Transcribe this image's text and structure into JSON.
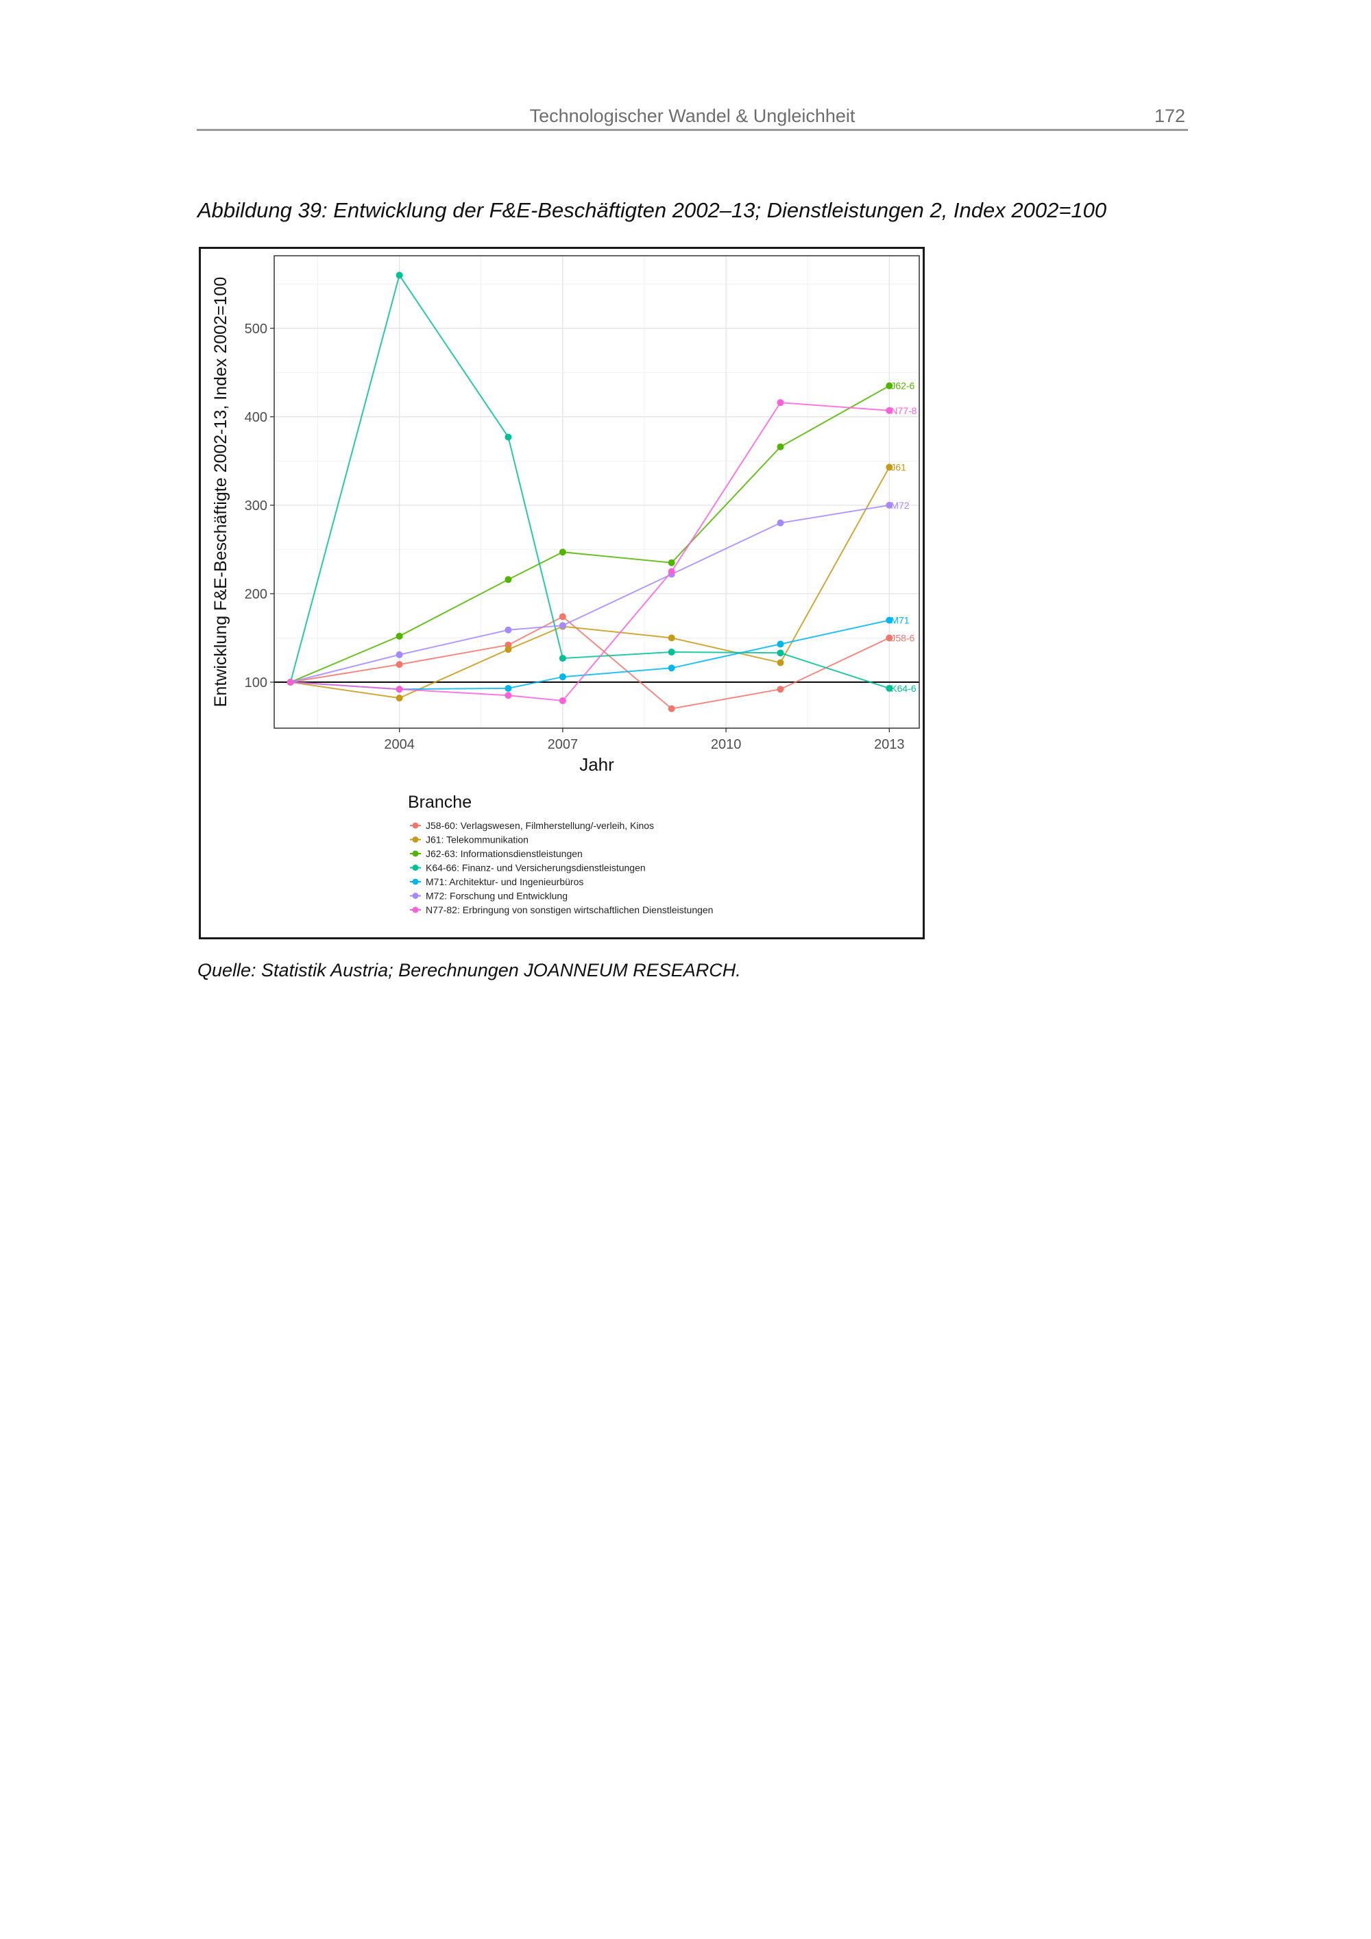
{
  "header": {
    "title": "Technologischer Wandel & Ungleichheit",
    "page_number": "172"
  },
  "figure": {
    "caption": "Abbildung 39: Entwicklung der F&E-Beschäftigten 2002–13; Dienstleistungen 2, Index 2002=100",
    "source": "Quelle: Statistik Austria; Berechnungen JOANNEUM RESEARCH."
  },
  "chart_data": {
    "type": "line",
    "title": "",
    "xlabel": "Jahr",
    "ylabel": "Entwicklung F&E-Beschäftigte 2002-13, Index 2002=100",
    "xlim": [
      2001.7,
      2013.55
    ],
    "ylim": [
      48,
      582
    ],
    "x_ticks": [
      2004,
      2007,
      2010,
      2013
    ],
    "y_ticks": [
      100,
      200,
      300,
      400,
      500
    ],
    "grid": true,
    "reference_line": 100,
    "legend_title": "Branche",
    "legend_position": "bottom",
    "series": [
      {
        "name": "J58-60: Verlagswesen, Filmherstellung/-verleih, Kinos",
        "end_label": "J58-6",
        "color": "#f0766e",
        "points": [
          [
            2002,
            100
          ],
          [
            2004,
            120
          ],
          [
            2006,
            142
          ],
          [
            2007,
            174
          ],
          [
            2009,
            70
          ],
          [
            2011,
            92
          ],
          [
            2013,
            150
          ]
        ]
      },
      {
        "name": "J61: Telekommunikation",
        "end_label": "J61",
        "color": "#c49a18",
        "points": [
          [
            2002,
            100
          ],
          [
            2004,
            82
          ],
          [
            2006,
            137
          ],
          [
            2007,
            163
          ],
          [
            2009,
            150
          ],
          [
            2011,
            122
          ],
          [
            2013,
            343
          ]
        ]
      },
      {
        "name": "J62-63: Informationsdienstleistungen",
        "end_label": "J62-6",
        "color": "#53b400",
        "points": [
          [
            2002,
            100
          ],
          [
            2004,
            152
          ],
          [
            2006,
            216
          ],
          [
            2007,
            247
          ],
          [
            2009,
            235
          ],
          [
            2011,
            366
          ],
          [
            2013,
            435
          ]
        ]
      },
      {
        "name": "K64-66: Finanz- und Versicherungsdienstleistungen",
        "end_label": "K64-6",
        "color": "#00c094",
        "points": [
          [
            2002,
            100
          ],
          [
            2004,
            560
          ],
          [
            2006,
            377
          ],
          [
            2007,
            127
          ],
          [
            2009,
            134
          ],
          [
            2011,
            133
          ],
          [
            2013,
            93
          ]
        ]
      },
      {
        "name": "M71: Architektur- und Ingenieurbüros",
        "end_label": "M71",
        "color": "#00b6eb",
        "points": [
          [
            2002,
            100
          ],
          [
            2004,
            92
          ],
          [
            2006,
            93
          ],
          [
            2007,
            106
          ],
          [
            2009,
            116
          ],
          [
            2011,
            143
          ],
          [
            2013,
            170
          ]
        ]
      },
      {
        "name": "M72: Forschung und Entwicklung",
        "end_label": "M72",
        "color": "#a58aff",
        "points": [
          [
            2002,
            100
          ],
          [
            2004,
            131
          ],
          [
            2006,
            159
          ],
          [
            2007,
            164
          ],
          [
            2009,
            222
          ],
          [
            2011,
            280
          ],
          [
            2013,
            300
          ]
        ]
      },
      {
        "name": "N77-82: Erbringung von sonstigen wirtschaftlichen Dienstleistungen",
        "end_label": "N77-8",
        "color": "#fb61d7",
        "points": [
          [
            2002,
            100
          ],
          [
            2004,
            92
          ],
          [
            2006,
            85
          ],
          [
            2007,
            79
          ],
          [
            2009,
            225
          ],
          [
            2011,
            416
          ],
          [
            2013,
            407
          ]
        ]
      }
    ]
  }
}
